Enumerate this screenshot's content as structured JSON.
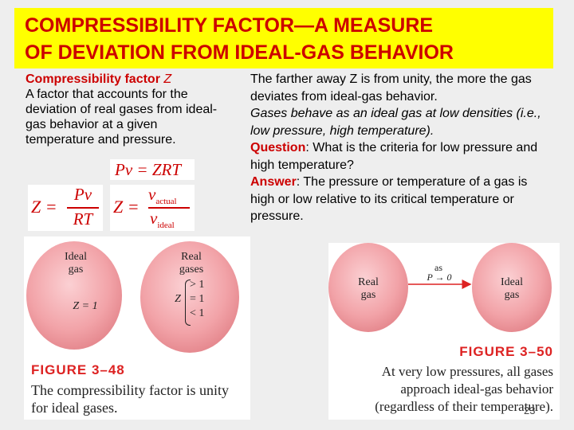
{
  "title": {
    "line1": "COMPRESSIBILITY FACTOR—A MEASURE",
    "line2": "OF DEVIATION FROM IDEAL-GAS BEHAVIOR"
  },
  "left": {
    "term": "Compressibility factor",
    "term_var": "Z",
    "body": "A factor that accounts for the deviation of real gases from ideal-gas behavior at a given temperature and pressure."
  },
  "equations": {
    "eq1": "Pv = ZRT",
    "eq2_lhs": "Z =",
    "eq2_num": "Pv",
    "eq2_den": "RT",
    "eq3_lhs": "Z =",
    "eq3_num": "v",
    "eq3_num_sub": "actual",
    "eq3_den": "v",
    "eq3_den_sub": "ideal"
  },
  "right": {
    "p1": "The farther away Z is from unity, the more the gas deviates from ideal-gas behavior.",
    "p2": "Gases behave as an ideal gas at low densities (i.e., low pressure, high temperature).",
    "question_label": "Question",
    "question_text": ": What is the criteria for low pressure and high temperature?",
    "answer_label": "Answer",
    "answer_text": ": The pressure or temperature of a gas is high or low relative to its critical temperature or pressure."
  },
  "figure48": {
    "ideal_label_1": "Ideal",
    "ideal_label_2": "gas",
    "ideal_z": "Z = 1",
    "real_label_1": "Real",
    "real_label_2": "gases",
    "real_z": "Z",
    "real_cond_1": "> 1",
    "real_cond_2": "= 1",
    "real_cond_3": "< 1",
    "caption_title": "FIGURE 3–48",
    "caption_line1": "The compressibility factor is unity",
    "caption_line2": "for ideal gases."
  },
  "figure50": {
    "real_label_1": "Real",
    "real_label_2": "gas",
    "arrow_top": "as",
    "arrow_bottom": "P → 0",
    "ideal_label_1": "Ideal",
    "ideal_label_2": "gas",
    "caption_title": "FIGURE 3–50",
    "caption_line1": "At very low pressures, all gases",
    "caption_line2": "approach ideal-gas behavior",
    "caption_line3": "(regardless of their temperature)."
  },
  "page_number": "23",
  "colors": {
    "title_bg": "#ffff00",
    "title_text": "#cc0000",
    "accent": "#cc0000",
    "ball": "#f2a3a8"
  }
}
